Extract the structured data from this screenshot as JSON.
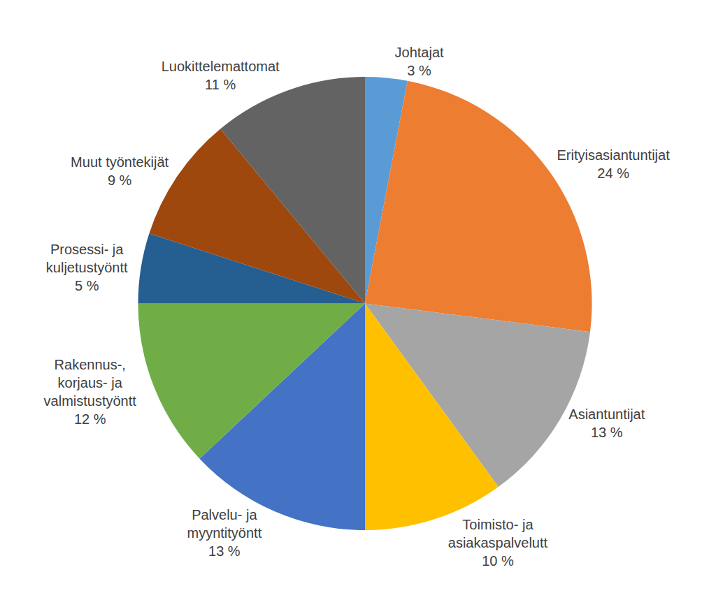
{
  "chart_data": {
    "type": "pie",
    "categories": [
      "Johtajat",
      "Erityisasiantuntijat",
      "Asiantuntijat",
      "Toimisto- ja asiakaspalvelutt",
      "Palvelu- ja myyntityöntt",
      "Rakennus-, korjaus- ja valmistustyöntt",
      "Prosessi- ja kuljetustyöntt",
      "Muut työntekijät",
      "Luokittelemattomat"
    ],
    "values": [
      3,
      24,
      13,
      10,
      13,
      12,
      5,
      9,
      11
    ],
    "value_labels": [
      "3 %",
      "24 %",
      "13 %",
      "10 %",
      "13 %",
      "12 %",
      "5 %",
      "9 %",
      "11 %"
    ],
    "colors": [
      "#5B9BD5",
      "#ED7D31",
      "#A5A5A5",
      "#FFC000",
      "#4472C4",
      "#70AD47",
      "#255E91",
      "#9E480E",
      "#636363"
    ],
    "data_labels": true
  }
}
